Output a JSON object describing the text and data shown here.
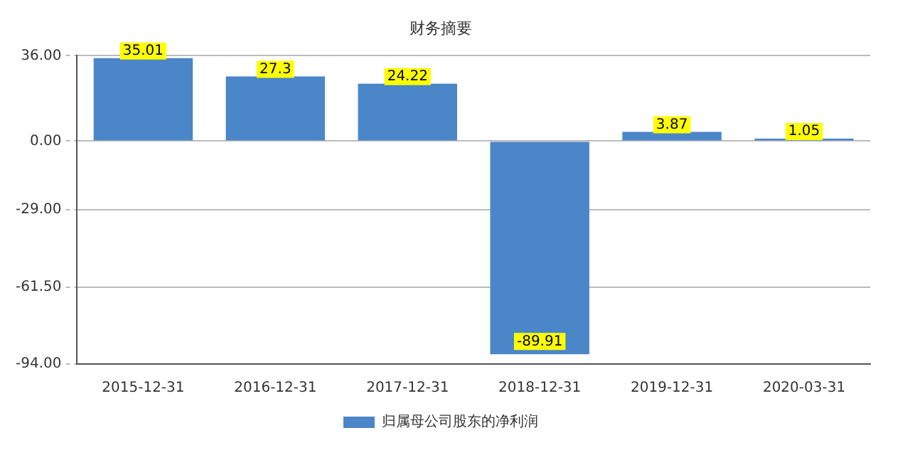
{
  "chart_data": {
    "type": "bar",
    "title": "财务摘要",
    "categories": [
      "2015-12-31",
      "2016-12-31",
      "2017-12-31",
      "2018-12-31",
      "2019-12-31",
      "2020-03-31"
    ],
    "series": [
      {
        "name": "归属母公司股东的净利润",
        "color": "#4a86c8",
        "values": [
          35.01,
          27.3,
          24.22,
          -89.91,
          3.87,
          1.05
        ]
      }
    ],
    "ylim": [
      -94,
      36
    ],
    "yticks": [
      {
        "value": 36,
        "label": "36.00"
      },
      {
        "value": 0,
        "label": "0.00"
      },
      {
        "value": -29,
        "label": "-29.00"
      },
      {
        "value": -61.5,
        "label": "-61.50"
      },
      {
        "value": -94,
        "label": "-94.00"
      }
    ],
    "grid": "y",
    "legend": "bottom",
    "data_labels": true
  }
}
